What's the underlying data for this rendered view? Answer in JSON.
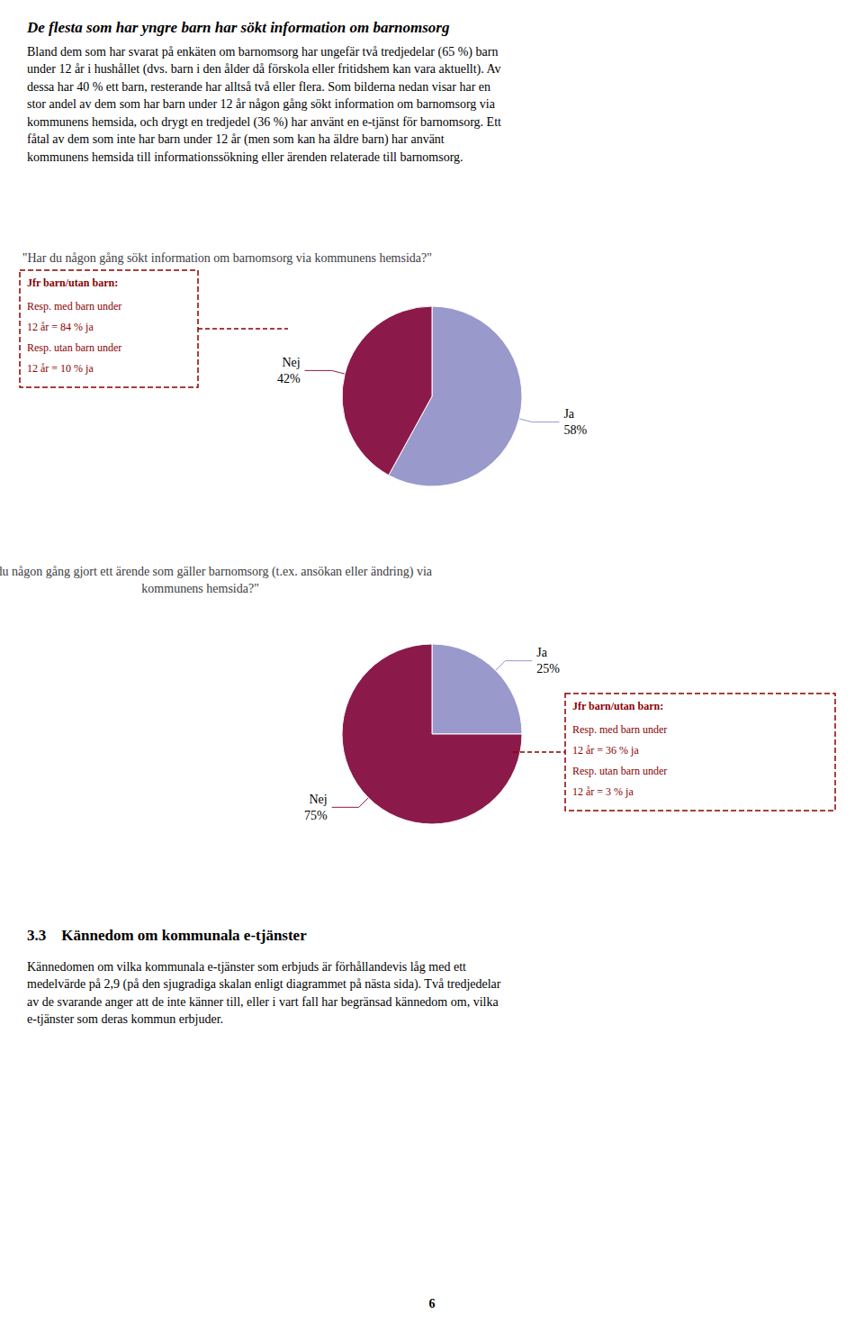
{
  "heading": "De flesta som har yngre barn har sökt information om barnomsorg",
  "intro": [
    "Bland dem som har svarat på enkäten om barnomsorg har ungefär två tredjedelar (65 %) barn",
    "under 12 år i hushållet (dvs. barn i den ålder då förskola eller fritidshem kan vara aktuellt). Av",
    "dessa har 40 % ett barn, resterande har alltså två eller flera. Som bilderna nedan visar har en",
    "stor andel av dem som har barn under 12 år någon gång sökt information om barnomsorg via",
    "kommunens hemsida, och drygt en tredjedel (36 %) har använt en e-tjänst för barnomsorg. Ett",
    "fåtal av dem som inte har barn under 12 år (men som kan ha äldre barn) har använt",
    "kommunens hemsida till informationssökning eller ärenden relaterade till barnomsorg."
  ],
  "section_title": "3.3    Kännedom om kommunala e-tjänster",
  "section_text": [
    "Kännedomen om vilka kommunala e-tjänster som erbjuds är förhållandevis låg med ett",
    "medelvärde på 2,9 (på den sjugradiga skalan enligt diagrammet på nästa sida). Två tredjedelar",
    "av de svarande anger att de inte känner till, eller i vart fall har begränsad kännedom om, vilka",
    "e-tjänster som deras kommun erbjuder."
  ],
  "page_number": "6",
  "chart_data": [
    {
      "type": "pie",
      "title": "\"Har du någon gång sökt information om barnomsorg via kommunens hemsida?\"",
      "categories": [
        "Ja",
        "Nej"
      ],
      "values": [
        58,
        42
      ],
      "value_labels": [
        "58%",
        "42%"
      ],
      "colors": [
        "#9999cc",
        "#8b1a4a"
      ],
      "data_labels": true,
      "annotations": [
        {
          "title": "Jfr barn/utan barn:",
          "lines": [
            "Resp. med barn under",
            "12 år = 84 % ja",
            "Resp. utan barn under",
            "12 år = 10 % ja"
          ],
          "color": "#8b0000"
        }
      ]
    },
    {
      "type": "pie",
      "title": "\"Har du någon gång gjort ett ärende som gäller barnomsorg (t.ex. ansökan eller ändring) via\nkommunens hemsida?\"",
      "categories": [
        "Ja",
        "Nej"
      ],
      "values": [
        25,
        75
      ],
      "value_labels": [
        "25%",
        "75%"
      ],
      "colors": [
        "#9999cc",
        "#8b1a4a"
      ],
      "data_labels": true,
      "annotations": [
        {
          "title": "Jfr barn/utan barn:",
          "lines": [
            "Resp. med barn under",
            "12 år = 36 % ja",
            "Resp. utan barn under",
            "12 år = 3 % ja"
          ],
          "color": "#8b0000"
        }
      ]
    }
  ]
}
